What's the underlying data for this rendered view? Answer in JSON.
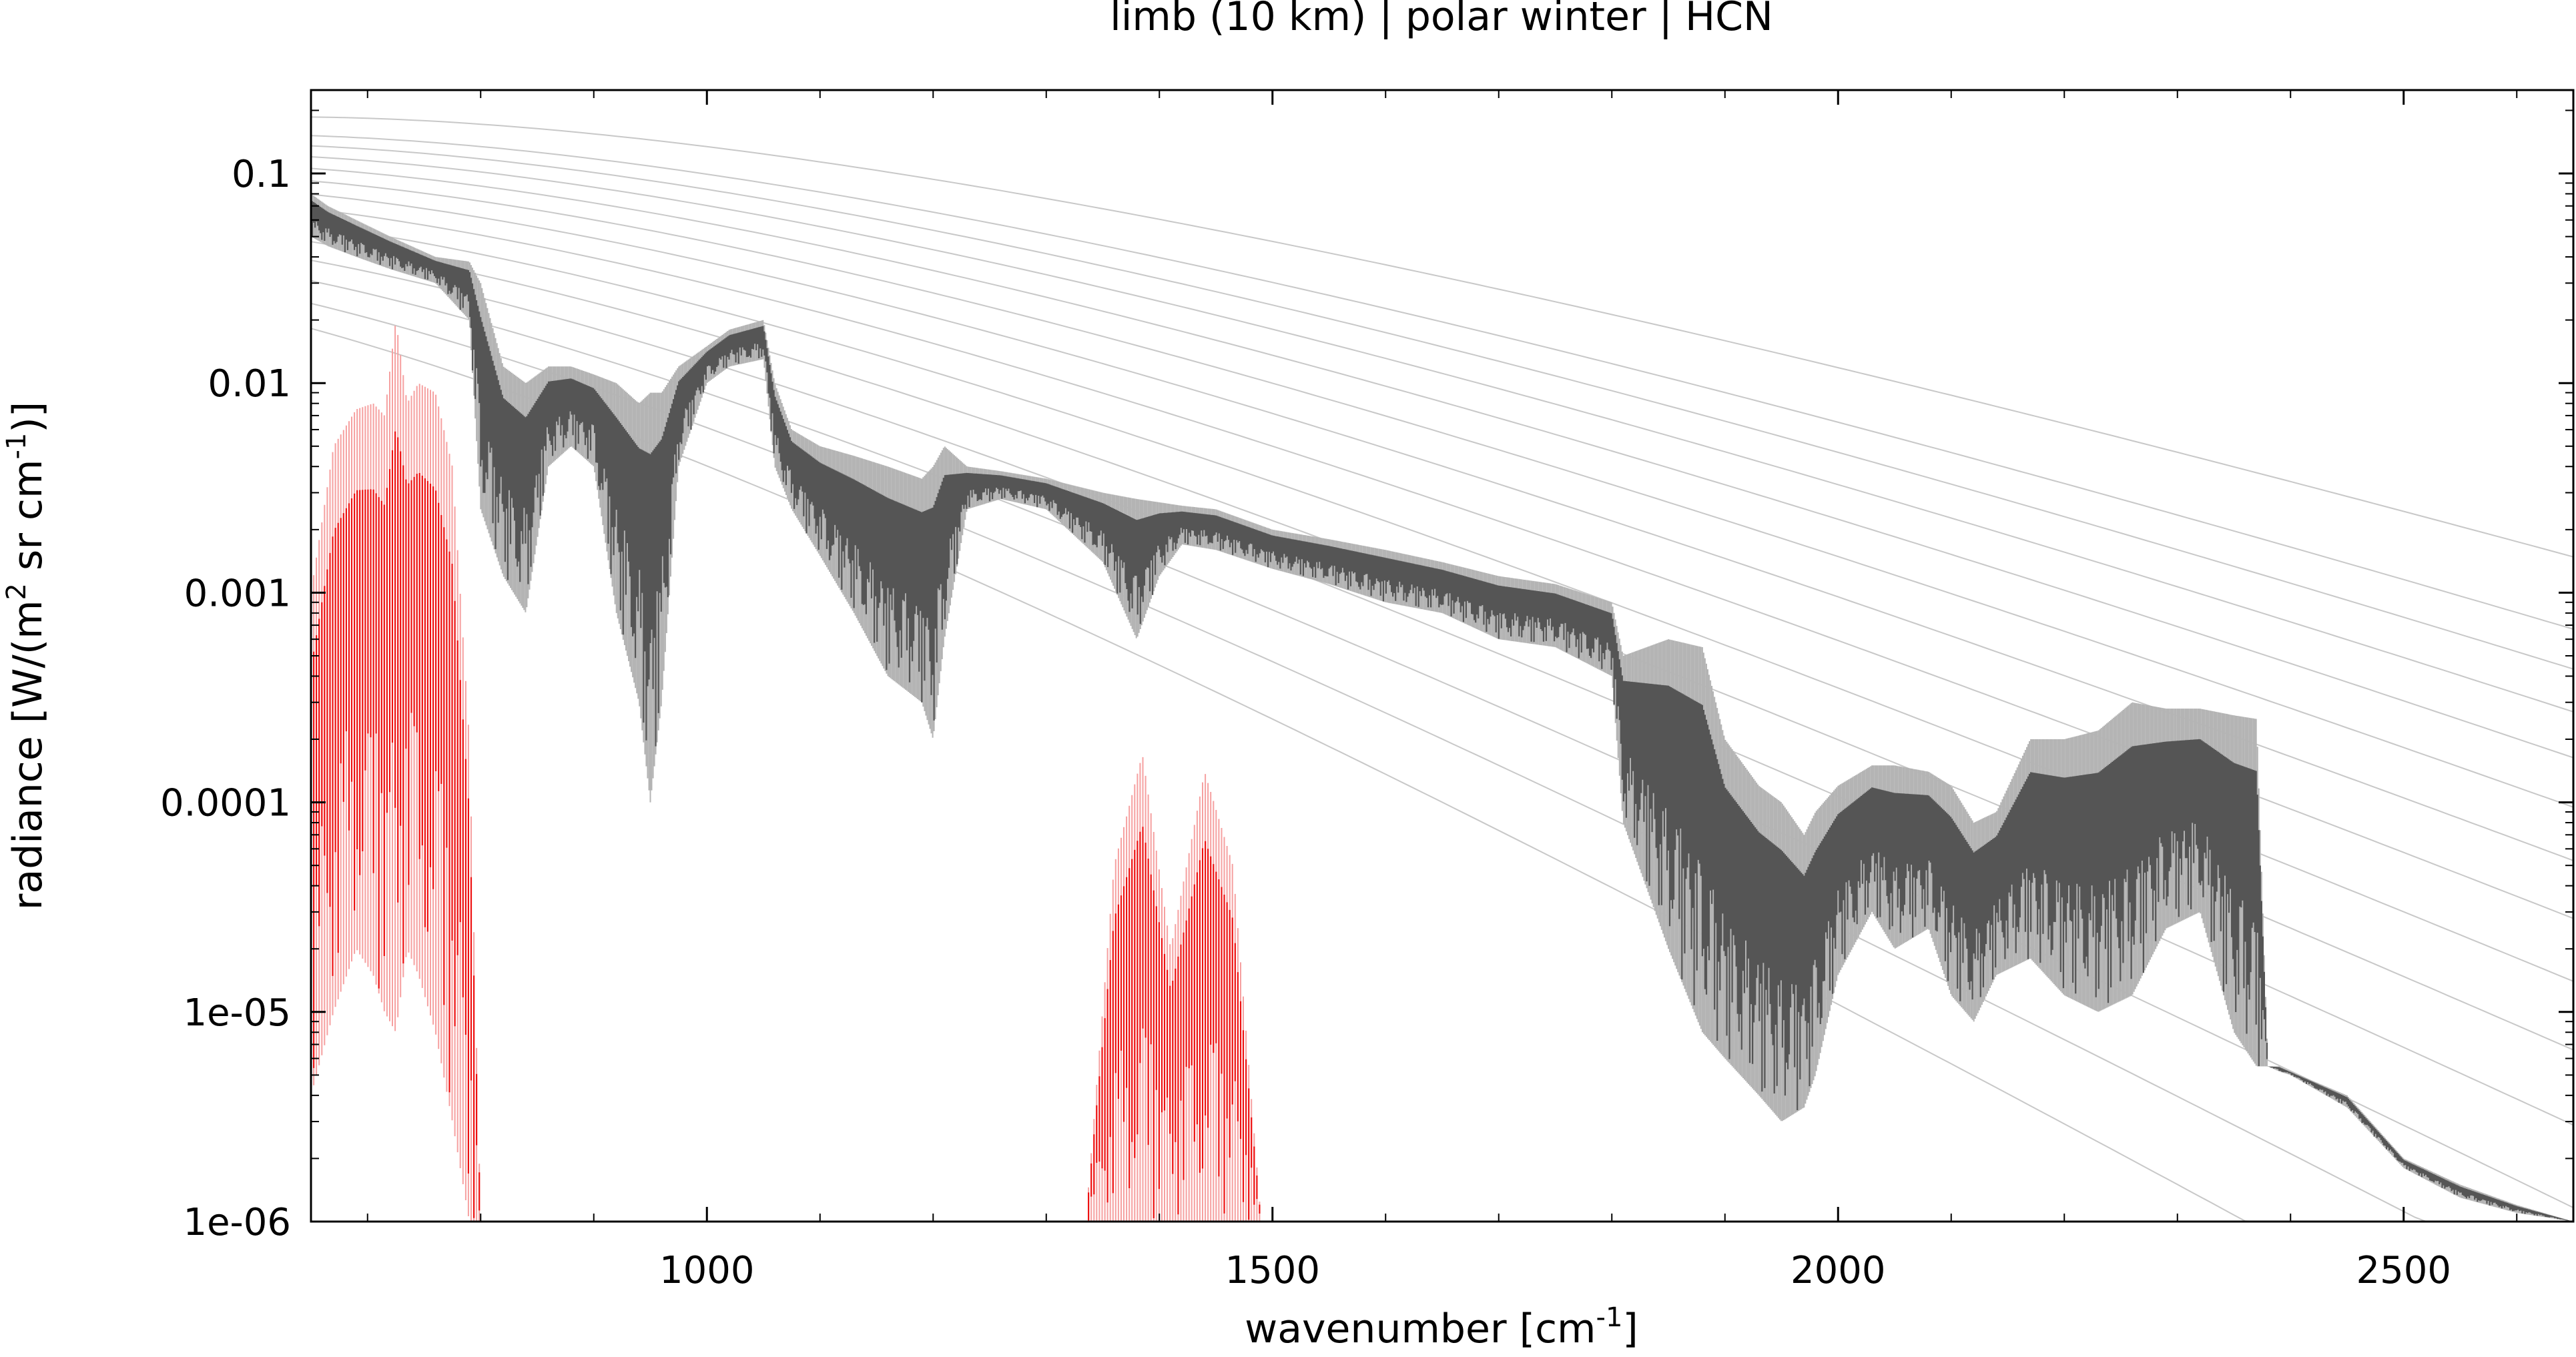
{
  "chart_data": {
    "type": "line",
    "title": "limb (10 km) | polar winter | HCN",
    "xlabel": {
      "text": "wavenumber [cm",
      "sup": "-1",
      "tail": "]"
    },
    "ylabel": {
      "text": "radiance [W/(m",
      "sup1": "2",
      "mid": " sr cm",
      "sup2": "-1",
      "tail": ")]"
    },
    "xlim": [
      650,
      2650
    ],
    "ylim": [
      1e-06,
      0.25
    ],
    "yscale": "log",
    "grid": false,
    "legend": "none",
    "xticks": [
      1000,
      1500,
      2000,
      2500
    ],
    "xtick_labels": [
      "1000",
      "1500",
      "2000",
      "2500"
    ],
    "yticks": [
      1e-06,
      1e-05,
      0.0001,
      0.001,
      0.01,
      0.1
    ],
    "ytick_labels": [
      "1e-06",
      "1e-05",
      "0.0001",
      "0.001",
      "0.01",
      "0.1"
    ],
    "colors": {
      "total_dark": "#555555",
      "total_light": "#b4b4b4",
      "planck": "#c8c8c8",
      "hcn": "#ee1111",
      "hcn_light": "#f6a0a0"
    },
    "series": [
      {
        "role": "total-radiance",
        "x": [
          650,
          665,
          690,
          720,
          760,
          790,
          800,
          820,
          840,
          860,
          880,
          900,
          920,
          940,
          950,
          960,
          975,
          1000,
          1020,
          1050,
          1060,
          1075,
          1100,
          1130,
          1160,
          1190,
          1200,
          1210,
          1230,
          1260,
          1300,
          1350,
          1380,
          1400,
          1420,
          1450,
          1500,
          1550,
          1600,
          1650,
          1700,
          1750,
          1800,
          1810,
          1850,
          1880,
          1900,
          1930,
          1950,
          1970,
          1980,
          2000,
          2030,
          2050,
          2080,
          2100,
          2120,
          2140,
          2170,
          2200,
          2230,
          2260,
          2290,
          2320,
          2350,
          2370,
          2380,
          2390,
          2400,
          2450,
          2500,
          2550,
          2600,
          2650
        ],
        "upper": [
          0.08,
          0.07,
          0.06,
          0.05,
          0.04,
          0.038,
          0.03,
          0.012,
          0.01,
          0.012,
          0.012,
          0.011,
          0.01,
          0.008,
          0.009,
          0.009,
          0.012,
          0.015,
          0.018,
          0.02,
          0.01,
          0.006,
          0.005,
          0.0045,
          0.004,
          0.0035,
          0.004,
          0.005,
          0.004,
          0.0038,
          0.0035,
          0.003,
          0.0028,
          0.0027,
          0.0026,
          0.0025,
          0.002,
          0.0018,
          0.0016,
          0.0014,
          0.0012,
          0.0011,
          0.0009,
          0.0005,
          0.0006,
          0.00055,
          0.0002,
          0.00012,
          0.0001,
          7e-05,
          9e-05,
          0.00012,
          0.00015,
          0.00015,
          0.00014,
          0.00012,
          8e-05,
          9e-05,
          0.0002,
          0.0002,
          0.00022,
          0.0003,
          0.00028,
          0.00028,
          0.00026,
          0.00025,
          5.5e-06,
          5.5e-06,
          5.2e-06,
          4e-06,
          2e-06,
          1.5e-06,
          1.2e-06,
          1e-06
        ],
        "lower": [
          0.05,
          0.045,
          0.04,
          0.035,
          0.03,
          0.02,
          0.0025,
          0.0012,
          0.0008,
          0.004,
          0.005,
          0.004,
          0.0008,
          0.0003,
          0.0001,
          0.0003,
          0.004,
          0.01,
          0.012,
          0.013,
          0.004,
          0.0025,
          0.0015,
          0.0008,
          0.0004,
          0.0003,
          0.0002,
          0.0006,
          0.0025,
          0.0028,
          0.0025,
          0.0014,
          0.0006,
          0.0012,
          0.0017,
          0.0016,
          0.0013,
          0.0011,
          0.0009,
          0.0008,
          0.0006,
          0.00055,
          0.0004,
          8e-05,
          2e-05,
          8e-06,
          6e-06,
          4e-06,
          3e-06,
          3.5e-06,
          5e-06,
          1.5e-05,
          3e-05,
          2e-05,
          2.5e-05,
          1.2e-05,
          9e-06,
          1.5e-05,
          1.8e-05,
          1.2e-05,
          1e-05,
          1.2e-05,
          2.5e-05,
          3e-05,
          8e-06,
          5.5e-06,
          5.5e-06,
          5.2e-06,
          5e-06,
          3.5e-06,
          1.8e-06,
          1.3e-06,
          1.1e-06,
          1e-06
        ]
      },
      {
        "role": "hcn-band-1",
        "x": [
          650,
          670,
          690,
          705,
          715,
          725,
          735,
          745,
          760,
          775,
          790,
          800
        ],
        "upper": [
          0.001,
          0.005,
          0.0075,
          0.008,
          0.007,
          0.02,
          0.008,
          0.01,
          0.009,
          0.004,
          0.0002,
          1e-06
        ],
        "lower": [
          4e-06,
          1e-05,
          2e-05,
          1.5e-05,
          1e-05,
          8e-06,
          2e-05,
          1.5e-05,
          8e-06,
          3e-06,
          1e-06,
          1e-06
        ]
      },
      {
        "role": "hcn-band-2",
        "x": [
          1335,
          1360,
          1385,
          1410,
          1440,
          1465,
          1490
        ],
        "upper": [
          1e-06,
          5e-05,
          0.00017,
          2e-05,
          0.00014,
          5e-05,
          1e-06
        ],
        "lower": [
          1e-06,
          1e-06,
          1e-06,
          1e-06,
          1e-06,
          1e-06,
          1e-06
        ]
      }
    ],
    "reference_curves": {
      "description": "Planck blackbody radiance curves",
      "temperatures": [
        320,
        300,
        290,
        280,
        270,
        260,
        250,
        240,
        230,
        220,
        210,
        200,
        190,
        180
      ]
    }
  }
}
